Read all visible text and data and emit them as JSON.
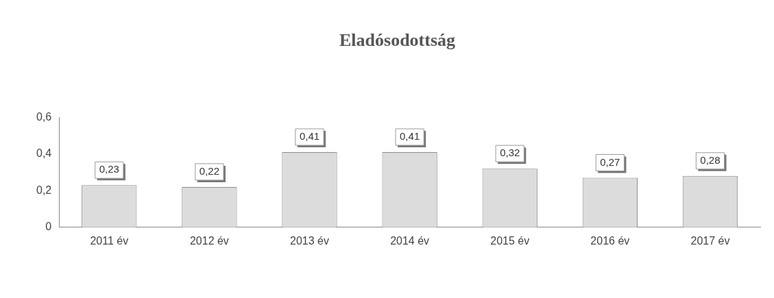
{
  "chart_data": {
    "type": "bar",
    "title": "Eladósodottság",
    "categories": [
      "2011 év",
      "2012 év",
      "2013 év",
      "2014 év",
      "2015 év",
      "2016 év",
      "2017 év"
    ],
    "values": [
      0.23,
      0.22,
      0.41,
      0.41,
      0.32,
      0.27,
      0.28
    ],
    "value_labels": [
      "0,23",
      "0,22",
      "0,41",
      "0,41",
      "0,32",
      "0,27",
      "0,28"
    ],
    "color": "#dcdcdc",
    "ylim": [
      0,
      0.6
    ],
    "yticks": [
      {
        "value": 0,
        "label": "0"
      },
      {
        "value": 0.2,
        "label": "0,2"
      },
      {
        "value": 0.4,
        "label": "0,4"
      },
      {
        "value": 0.6,
        "label": "0,6"
      }
    ],
    "grid": false,
    "legend": false
  }
}
